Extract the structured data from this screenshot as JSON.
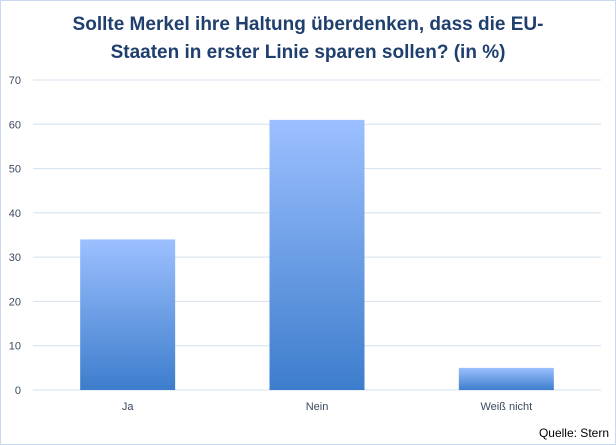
{
  "chart_data": {
    "type": "bar",
    "title_lines": [
      "Sollte Merkel ihre Haltung überdenken, dass die EU-",
      "Staaten in erster Linie sparen sollen? (in %)"
    ],
    "categories": [
      "Ja",
      "Nein",
      "Weiß nicht"
    ],
    "values": [
      34,
      61,
      5
    ],
    "ylim": [
      0,
      70
    ],
    "yticks": [
      0,
      10,
      20,
      30,
      40,
      50,
      60,
      70
    ],
    "grid": true,
    "xlabel": "",
    "ylabel": "",
    "colors": {
      "bar_top": "#9cc0ff",
      "bar_bottom": "#3d7dcc",
      "grid": "#d4e0ee",
      "title": "#1f3f6e"
    }
  },
  "source": "Quelle: Stern"
}
